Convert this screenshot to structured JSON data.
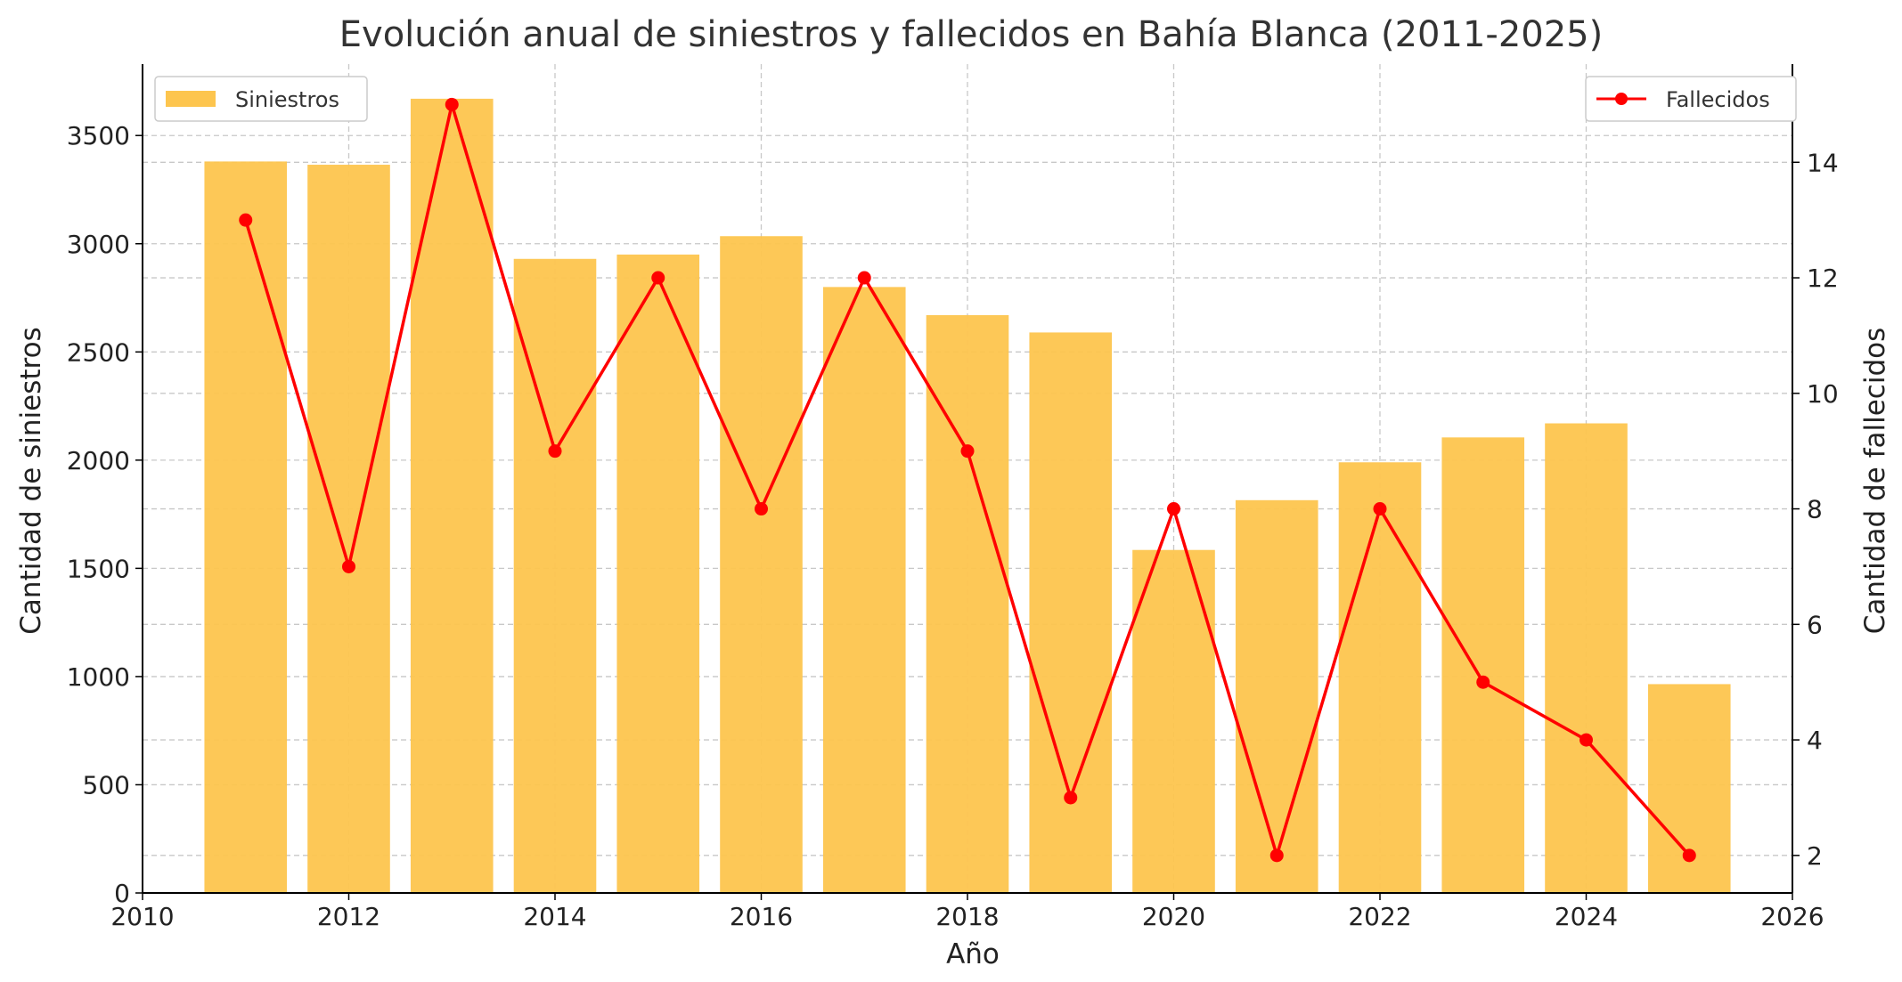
{
  "chart_data": {
    "type": "bar",
    "title": "Evolución anual de siniestros y fallecidos en Bahía Blanca (2011-2025)",
    "xlabel": "Año",
    "ylabel": "Cantidad de siniestros",
    "y2label": "Cantidad de fallecidos",
    "x": [
      2011,
      2012,
      2013,
      2014,
      2015,
      2016,
      2017,
      2018,
      2019,
      2020,
      2021,
      2022,
      2023,
      2024,
      2025
    ],
    "series": [
      {
        "name": "Siniestros",
        "type": "bar",
        "axis": "left",
        "color": "#FDC54E",
        "values": [
          3380,
          3365,
          3670,
          2930,
          2950,
          3035,
          2800,
          2670,
          2590,
          1585,
          1815,
          1990,
          2105,
          2170,
          965
        ]
      },
      {
        "name": "Fallecidos",
        "type": "line",
        "axis": "right",
        "color": "#FF0000",
        "values": [
          13,
          7,
          15,
          9,
          12,
          8,
          12,
          9,
          3,
          8,
          2,
          8,
          5,
          4,
          2
        ]
      }
    ],
    "xlim": [
      2010,
      2026
    ],
    "ylim": [
      0,
      3830
    ],
    "y2lim": [
      1.35,
      15.7
    ],
    "x_ticks": [
      2010,
      2012,
      2014,
      2016,
      2018,
      2020,
      2022,
      2024,
      2026
    ],
    "y_ticks": [
      0,
      500,
      1000,
      1500,
      2000,
      2500,
      3000,
      3500
    ],
    "y2_ticks": [
      2,
      4,
      6,
      8,
      10,
      12,
      14
    ],
    "grid": true,
    "legend_left_placement": "top-left",
    "legend_right_placement": "top-right"
  }
}
